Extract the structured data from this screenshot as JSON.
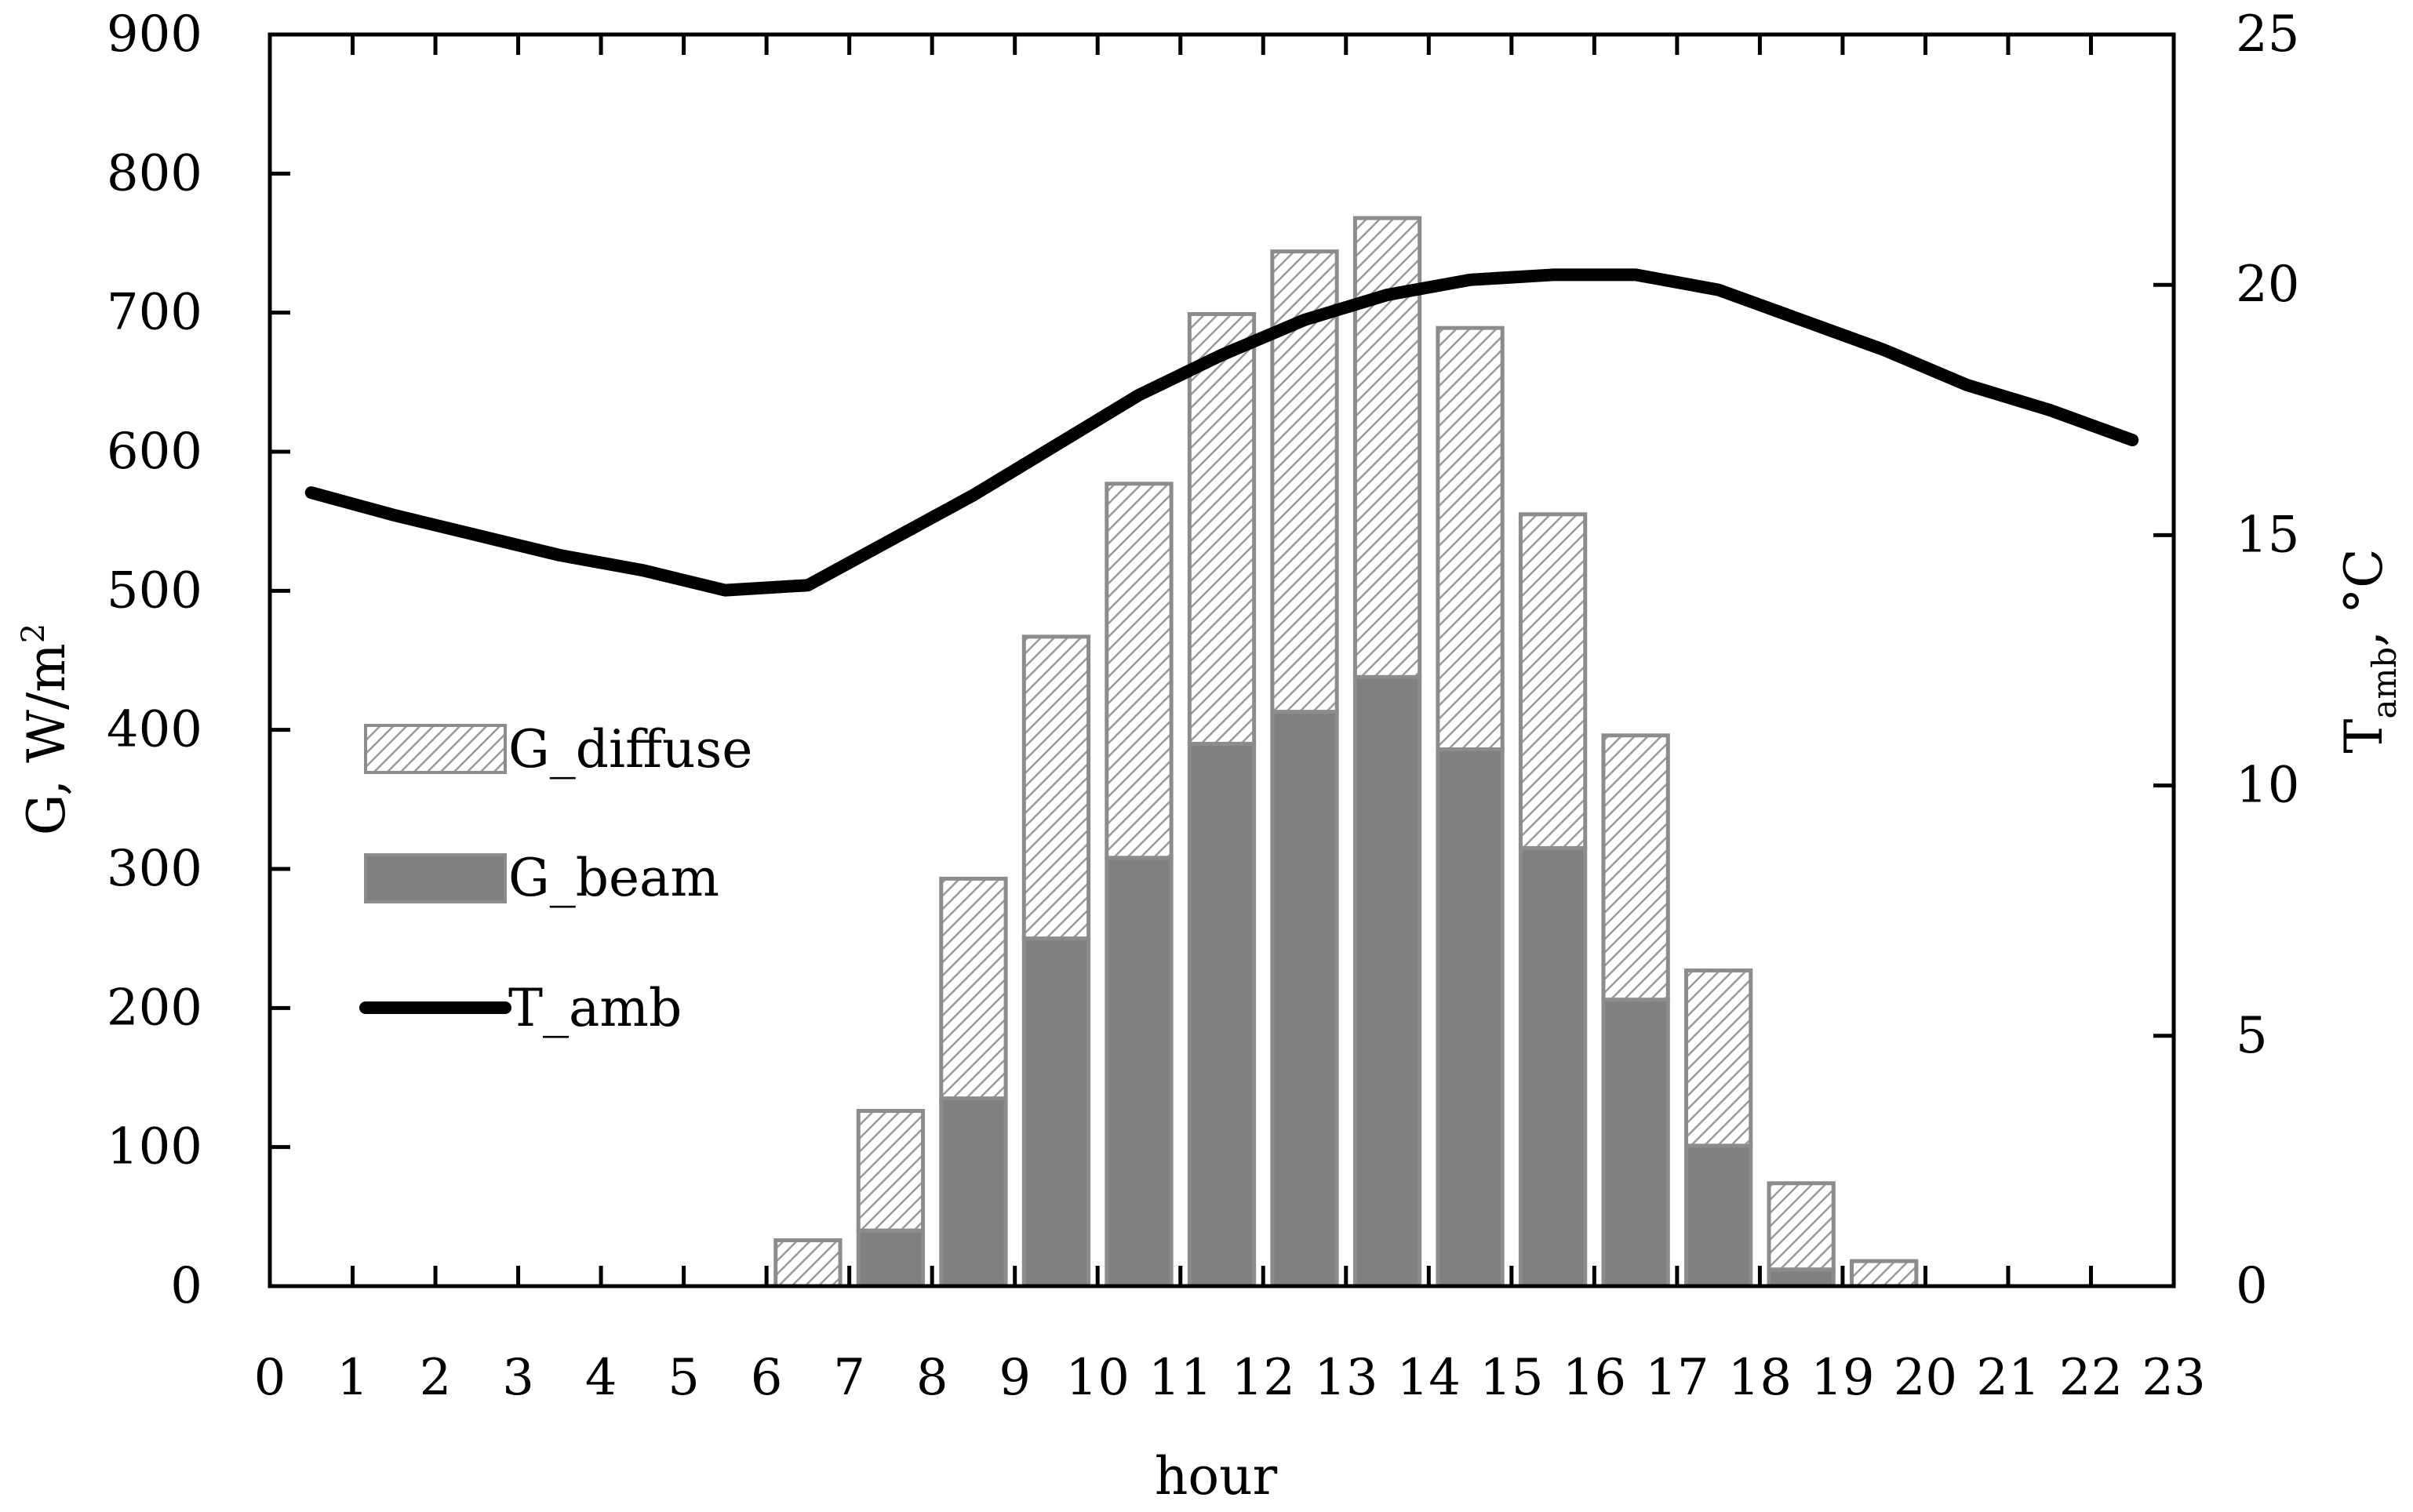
{
  "chart_data": {
    "type": "bar",
    "stacked": true,
    "secondary_type": "line",
    "xlabel": "hour",
    "ylabel": "G, W/m",
    "ylabel_sup": "2",
    "y2label_main": "T",
    "y2label_sub": "amb",
    "y2label_unit": ", °C",
    "x_ticks": [
      "0",
      "1",
      "2",
      "3",
      "4",
      "5",
      "6",
      "7",
      "8",
      "9",
      "10",
      "11",
      "12",
      "13",
      "14",
      "15",
      "16",
      "17",
      "18",
      "19",
      "20",
      "21",
      "22",
      "23"
    ],
    "ylim": [
      0,
      900
    ],
    "y_ticks": [
      "0",
      "100",
      "200",
      "300",
      "400",
      "500",
      "600",
      "700",
      "800",
      "900"
    ],
    "y2lim": [
      0,
      25
    ],
    "y2_ticks": [
      "0",
      "5",
      "10",
      "15",
      "20",
      "25"
    ],
    "bar_hours": [
      6,
      7,
      8,
      9,
      10,
      11,
      12,
      13,
      14,
      15,
      16,
      17,
      18,
      19
    ],
    "series": [
      {
        "name": "G_beam",
        "values": [
          0,
          40,
          135,
          250,
          308,
          390,
          413,
          438,
          386,
          315,
          206,
          101,
          12,
          0
        ]
      },
      {
        "name": "G_diffuse",
        "values": [
          33,
          86,
          158,
          217,
          269,
          309,
          331,
          330,
          303,
          240,
          190,
          126,
          62,
          18
        ]
      }
    ],
    "line": {
      "name": "T_amb",
      "hours": [
        0.5,
        1.5,
        2.5,
        3.5,
        4.5,
        5.5,
        6.5,
        7.5,
        8.5,
        9.5,
        10.5,
        11.5,
        12.5,
        13.5,
        14.5,
        15.5,
        16.5,
        17.5,
        18.5,
        19.5,
        20.5,
        21.5,
        22.5
      ],
      "values": [
        15.85,
        15.4,
        15.0,
        14.6,
        14.3,
        13.9,
        14.0,
        14.9,
        15.8,
        16.8,
        17.8,
        18.6,
        19.3,
        19.8,
        20.1,
        20.2,
        20.2,
        19.9,
        19.3,
        18.7,
        18.0,
        17.5,
        16.9
      ]
    },
    "legend": {
      "position": "center-left",
      "entries": [
        "G_diffuse",
        "G_beam",
        "T_amb"
      ]
    },
    "colors": {
      "beam": "#808080",
      "diffuse_hatch": "#9a9a9a",
      "bar_border": "#8c8c8c",
      "line": "#000000",
      "axis": "#000000"
    },
    "grid": false
  }
}
